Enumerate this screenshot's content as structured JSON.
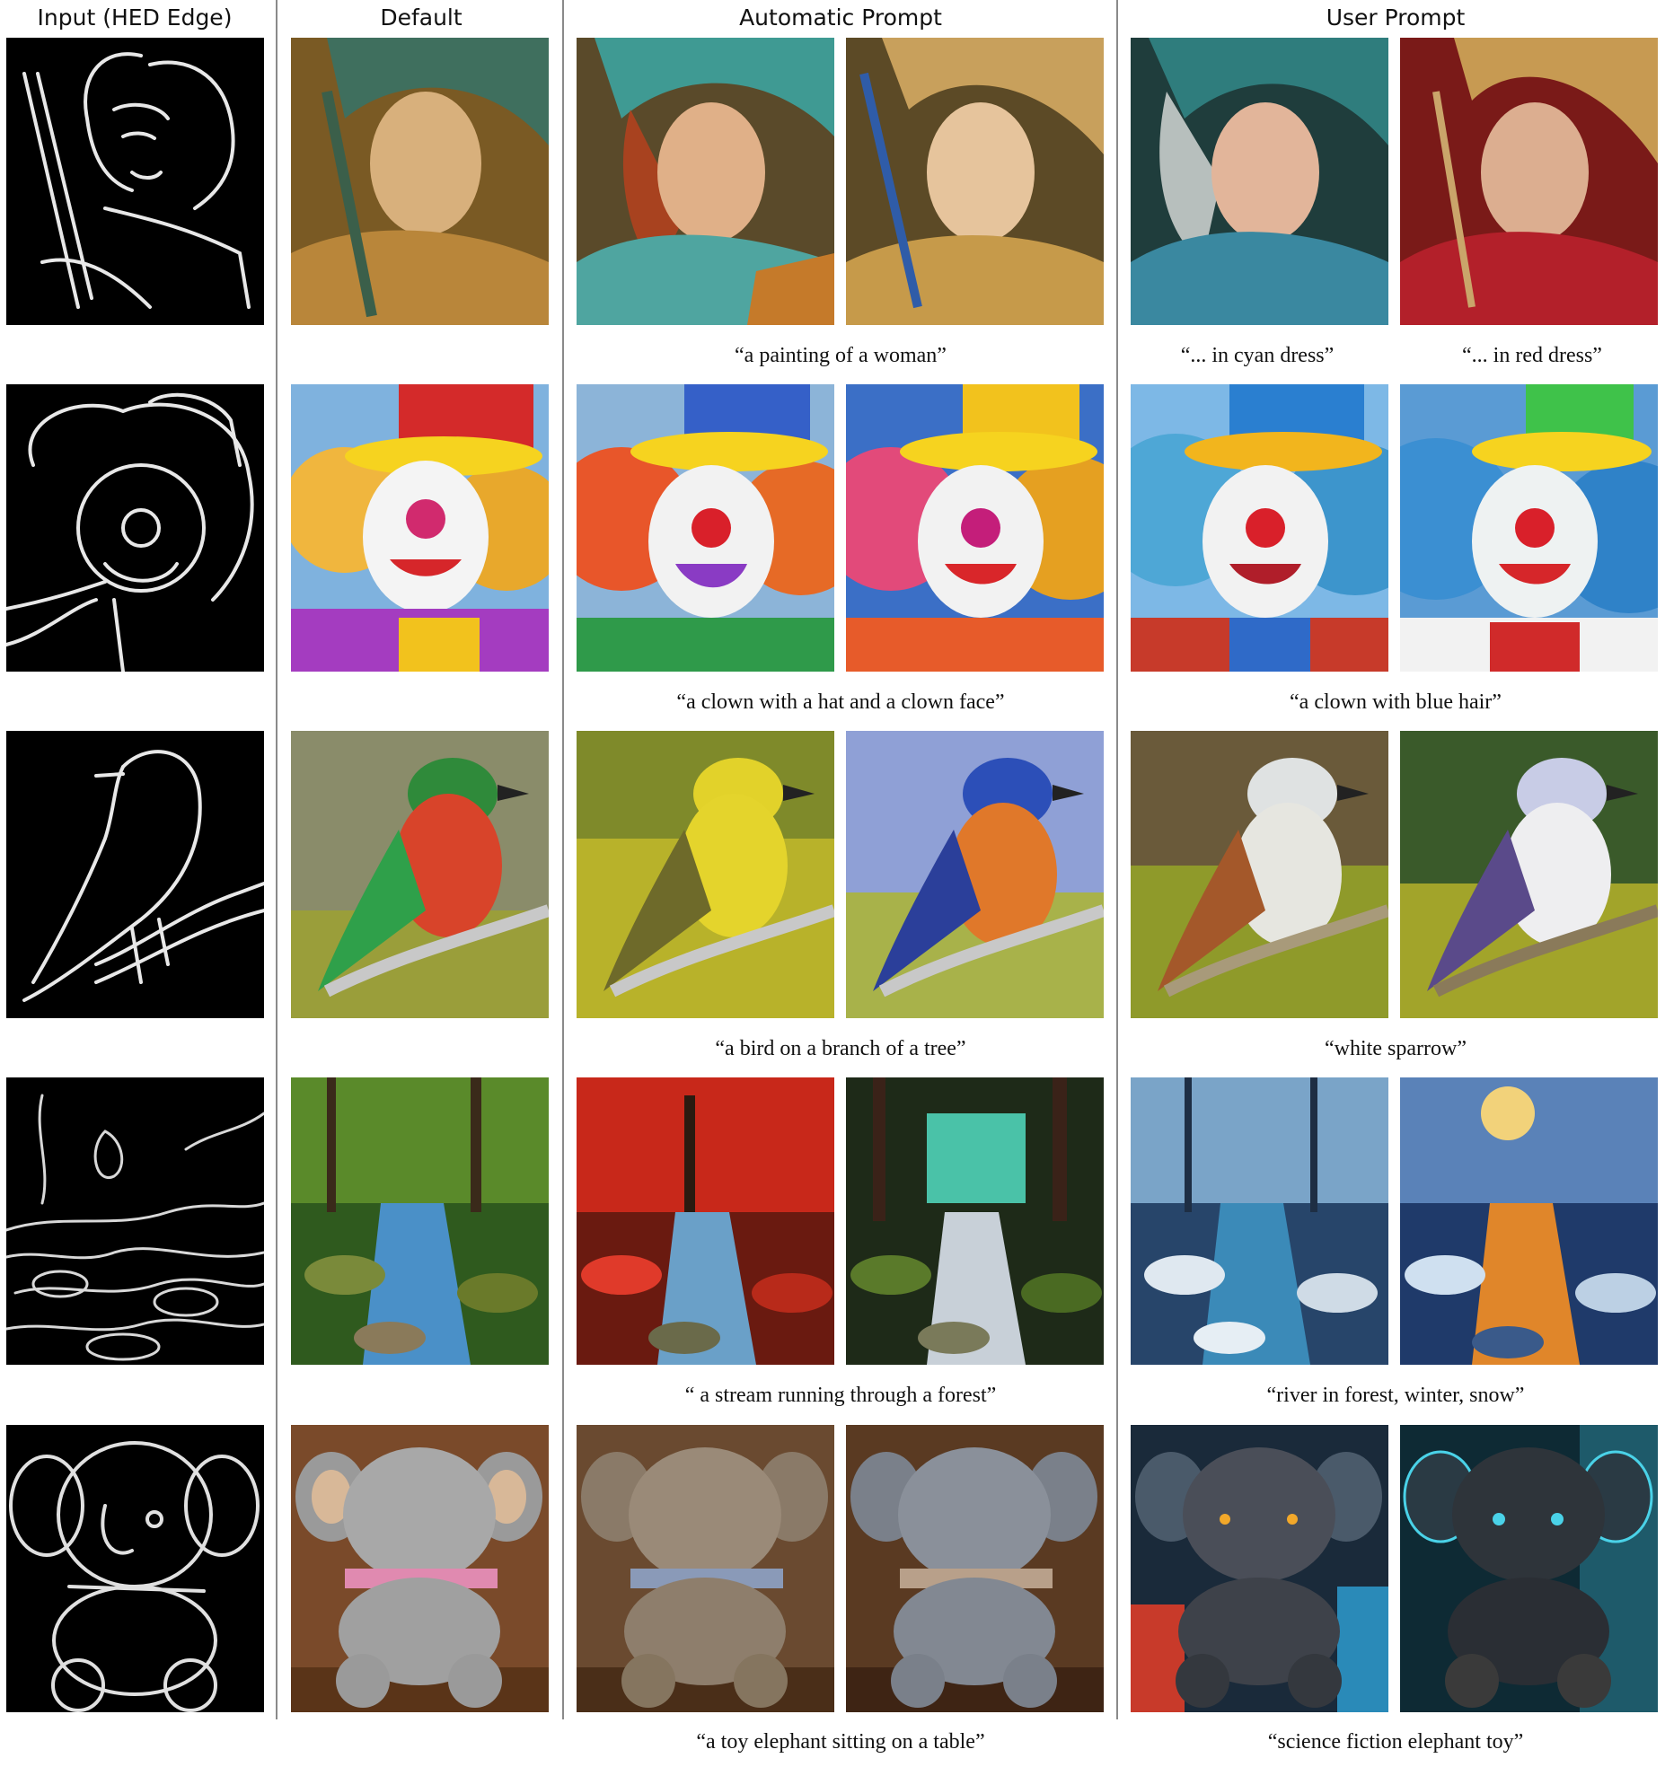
{
  "headers": {
    "input": "Input (HED Edge)",
    "default": "Default",
    "automatic": "Automatic Prompt",
    "user": "User Prompt"
  },
  "rows": [
    {
      "auto_caption": "“a painting of a woman”",
      "user_caption_left": "“... in cyan dress”",
      "user_caption_right": "“... in red dress”"
    },
    {
      "auto_caption": "“a clown with a hat and a clown face”",
      "user_caption": "“a clown with blue hair”"
    },
    {
      "auto_caption": "“a bird on a branch of a tree”",
      "user_caption": "“white sparrow”"
    },
    {
      "auto_caption": "“ a stream running through a forest”",
      "user_caption": "“river in forest, winter, snow”"
    },
    {
      "auto_caption": "“a toy elephant sitting on a table”",
      "user_caption": "“science fiction elephant toy”"
    }
  ]
}
